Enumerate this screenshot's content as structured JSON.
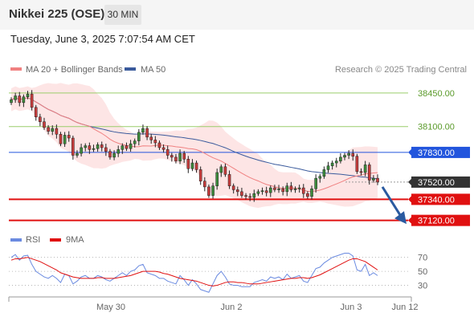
{
  "header": {
    "title": "Nikkei 225 (OSE)",
    "interval": "30 MIN",
    "datetime": "Tuesday, June 3, 2025 7:07:54 AM CET"
  },
  "legend": {
    "ma20": "MA 20 + Bollinger Bands",
    "ma50": "MA 50",
    "credit": "Research © 2025 Trading Central",
    "rsi": "RSI",
    "ma9": "9MA"
  },
  "colors": {
    "ma20": "#f08080",
    "ma50": "#3a5a9c",
    "band": "#fcdcdc",
    "up": "#3c8c3c",
    "down": "#c83c3c",
    "resistance_green": "#9acd6a",
    "pivot_blue": "#2255dd",
    "support_red": "#e01010",
    "current": "#333333",
    "arrow": "#2a5aa0",
    "rsi": "#6a8ae0",
    "rsi_ma": "#e01010"
  },
  "chart_data": [
    {
      "type": "candlestick",
      "title": "Nikkei 225 (OSE)",
      "interval": "30 MIN",
      "x_labels": [
        "May 30",
        "Jun 2",
        "Jun 3",
        "Jun 12"
      ],
      "ylim": [
        37050,
        38550
      ],
      "levels": [
        {
          "value": 38450,
          "label": "38450.00",
          "kind": "resistance"
        },
        {
          "value": 38100,
          "label": "38100.00",
          "kind": "resistance"
        },
        {
          "value": 37830,
          "label": "37830.00",
          "kind": "pivot"
        },
        {
          "value": 37520,
          "label": "37520.00",
          "kind": "current"
        },
        {
          "value": 37340,
          "label": "37340.00",
          "kind": "support"
        },
        {
          "value": 37120,
          "label": "37120.00",
          "kind": "support"
        }
      ],
      "close": [
        38380,
        38420,
        38350,
        38410,
        38440,
        38300,
        38200,
        38150,
        38090,
        38050,
        38080,
        38020,
        37920,
        38010,
        37980,
        37800,
        37820,
        37880,
        37900,
        37860,
        37870,
        37910,
        37880,
        37840,
        37780,
        37820,
        37860,
        37900,
        37870,
        37920,
        37950,
        38040,
        38080,
        37990,
        37960,
        37930,
        37880,
        37860,
        37800,
        37780,
        37740,
        37820,
        37760,
        37660,
        37720,
        37650,
        37530,
        37470,
        37380,
        37480,
        37620,
        37680,
        37600,
        37480,
        37440,
        37420,
        37380,
        37370,
        37360,
        37400,
        37420,
        37430,
        37410,
        37460,
        37440,
        37450,
        37420,
        37480,
        37440,
        37450,
        37460,
        37400,
        37370,
        37450,
        37560,
        37580,
        37650,
        37690,
        37720,
        37740,
        37780,
        37800,
        37820,
        37790,
        37630,
        37620,
        37700,
        37540,
        37560,
        37520
      ]
    },
    {
      "type": "line",
      "title": "RSI",
      "series_names": [
        "RSI",
        "9MA"
      ],
      "ylim": [
        18,
        80
      ],
      "yticks": [
        70,
        50,
        30
      ],
      "rsi": [
        70,
        74,
        66,
        72,
        73,
        60,
        50,
        46,
        42,
        40,
        44,
        40,
        34,
        46,
        44,
        32,
        36,
        42,
        44,
        40,
        40,
        44,
        42,
        38,
        36,
        40,
        44,
        48,
        44,
        50,
        52,
        58,
        60,
        48,
        46,
        44,
        40,
        40,
        36,
        34,
        32,
        44,
        38,
        30,
        38,
        32,
        24,
        22,
        20,
        32,
        44,
        50,
        42,
        32,
        30,
        30,
        28,
        28,
        28,
        34,
        36,
        38,
        36,
        42,
        40,
        42,
        38,
        46,
        40,
        42,
        44,
        36,
        34,
        44,
        54,
        56,
        62,
        66,
        70,
        72,
        74,
        76,
        76,
        72,
        52,
        50,
        60,
        44,
        48,
        44
      ],
      "rsi_ma": [
        66,
        68,
        68,
        69,
        70,
        68,
        66,
        64,
        61,
        58,
        55,
        52,
        48,
        46,
        44,
        42,
        41,
        40,
        40,
        40,
        40,
        41,
        41,
        40,
        40,
        40,
        41,
        42,
        43,
        44,
        46,
        48,
        50,
        50,
        50,
        50,
        49,
        47,
        46,
        44,
        42,
        40,
        39,
        38,
        37,
        36,
        34,
        32,
        30,
        29,
        30,
        32,
        34,
        35,
        35,
        34,
        34,
        33,
        32,
        32,
        32,
        33,
        34,
        35,
        36,
        37,
        38,
        39,
        40,
        40,
        41,
        41,
        40,
        41,
        43,
        45,
        48,
        51,
        54,
        57,
        60,
        63,
        66,
        68,
        68,
        66,
        64,
        60,
        56,
        52
      ]
    }
  ]
}
